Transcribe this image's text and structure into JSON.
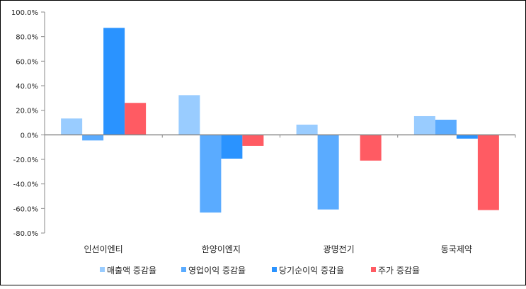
{
  "chart_data": {
    "type": "bar",
    "title": "",
    "xlabel": "",
    "ylabel": "",
    "ylim": [
      -80,
      100
    ],
    "yticks": [
      100,
      80,
      60,
      40,
      20,
      0,
      -20,
      -40,
      -60,
      -80
    ],
    "ytick_labels": [
      "100.0%",
      "80.0%",
      "60.0%",
      "40.0%",
      "20.0%",
      "0.0%",
      "-20.0%",
      "-40.0%",
      "-60.0%",
      "-80.0%"
    ],
    "categories": [
      "인선이엔티",
      "한양이엔지",
      "광명전기",
      "동국제약"
    ],
    "grid": false,
    "legend_position": "bottom",
    "series": [
      {
        "name": "매출액 증감율",
        "color": "#99CCFF",
        "values": [
          13.3,
          32.3,
          8.3,
          15.2
        ]
      },
      {
        "name": "영업이익 증감율",
        "color": "#5AABFF",
        "values": [
          -4.6,
          -63.3,
          -60.8,
          12.3
        ]
      },
      {
        "name": "당기순이익 증감율",
        "color": "#2A93FF",
        "values": [
          87.1,
          -19.4,
          0,
          -3.1
        ]
      },
      {
        "name": "주가 증감율",
        "color": "#FF5B63",
        "values": [
          26.0,
          -9.0,
          -21.0,
          -61.3
        ]
      }
    ]
  }
}
